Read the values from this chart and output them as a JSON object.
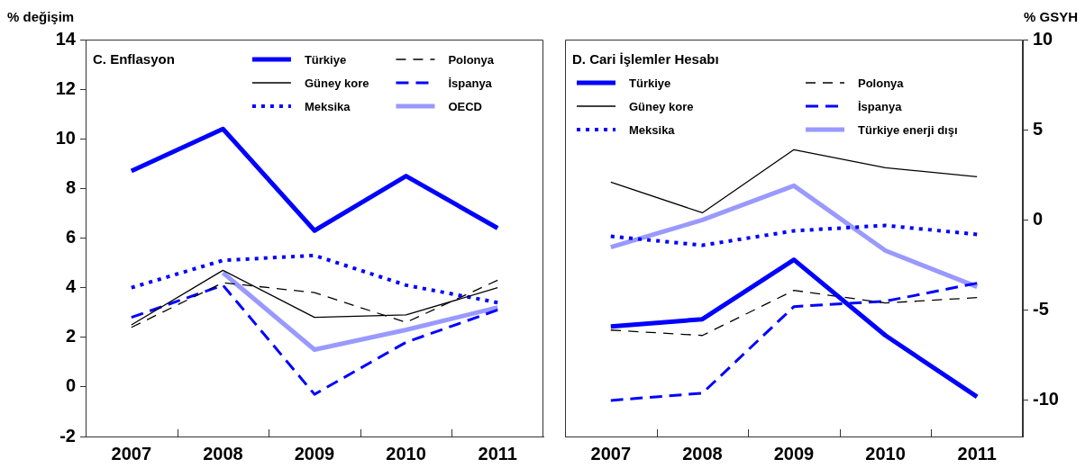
{
  "chart_data": [
    {
      "type": "line",
      "title": "C. Enflasyon",
      "ylabel": "% değişim",
      "categories": [
        "2007",
        "2008",
        "2009",
        "2010",
        "2011"
      ],
      "series": [
        {
          "name": "Türkiye",
          "color": "#0000ff",
          "line_style": "solid",
          "values": [
            8.7,
            10.4,
            6.3,
            8.5,
            6.4
          ]
        },
        {
          "name": "Güney kore",
          "color": "#000000",
          "line_style": "solid",
          "values": [
            2.5,
            4.7,
            2.8,
            2.9,
            4.0
          ]
        },
        {
          "name": "Meksika",
          "color": "#0000ff",
          "line_style": "dotted",
          "values": [
            4.0,
            5.1,
            5.3,
            4.1,
            3.4
          ]
        },
        {
          "name": "Polonya",
          "color": "#000000",
          "line_style": "dashed",
          "values": [
            2.4,
            4.2,
            3.8,
            2.6,
            4.3
          ]
        },
        {
          "name": "İspanya",
          "color": "#0000ff",
          "line_style": "dashed",
          "values": [
            2.8,
            4.1,
            -0.3,
            1.8,
            3.1
          ]
        },
        {
          "name": "OECD",
          "color": "#9999ff",
          "line_style": "solid",
          "values": [
            null,
            4.6,
            1.5,
            2.3,
            3.2
          ]
        }
      ],
      "ylim": [
        -2,
        14
      ],
      "yticks": [
        -2,
        0,
        2,
        4,
        6,
        8,
        10,
        12,
        14
      ],
      "grid": false,
      "legend": "top right",
      "marker": "none"
    },
    {
      "type": "line",
      "title": "D. Cari İşlemler Hesabı",
      "y2label": "% GSYH",
      "categories": [
        "2007",
        "2008",
        "2009",
        "2010",
        "2011"
      ],
      "series": [
        {
          "name": "Türkiye",
          "color": "#0000ff",
          "line_style": "solid",
          "axis": "y2",
          "values": [
            -5.9,
            -5.5,
            -2.2,
            -6.4,
            -9.8
          ]
        },
        {
          "name": "Güney kore",
          "color": "#000000",
          "line_style": "solid",
          "axis": "y2",
          "values": [
            2.1,
            0.4,
            3.9,
            2.9,
            2.4
          ]
        },
        {
          "name": "Meksika",
          "color": "#0000ff",
          "line_style": "dotted",
          "axis": "y2",
          "values": [
            -0.9,
            -1.4,
            -0.6,
            -0.3,
            -0.8
          ]
        },
        {
          "name": "Polonya",
          "color": "#000000",
          "line_style": "dashed",
          "axis": "y2",
          "values": [
            -6.1,
            -6.4,
            -3.9,
            -4.6,
            -4.3
          ]
        },
        {
          "name": "İspanya",
          "color": "#0000ff",
          "line_style": "dashed",
          "axis": "y2",
          "values": [
            -10.0,
            -9.6,
            -4.8,
            -4.5,
            -3.5
          ]
        },
        {
          "name": "Türkiye enerji dışı",
          "color": "#9999ff",
          "line_style": "solid",
          "axis": "y2",
          "values": [
            -1.5,
            0.0,
            1.9,
            -1.7,
            -3.7
          ]
        }
      ],
      "y2lim": [
        -12,
        10
      ],
      "y2ticks": [
        -10,
        -5,
        0,
        5,
        10
      ],
      "grid": false,
      "legend": "top left",
      "marker": "none"
    }
  ]
}
